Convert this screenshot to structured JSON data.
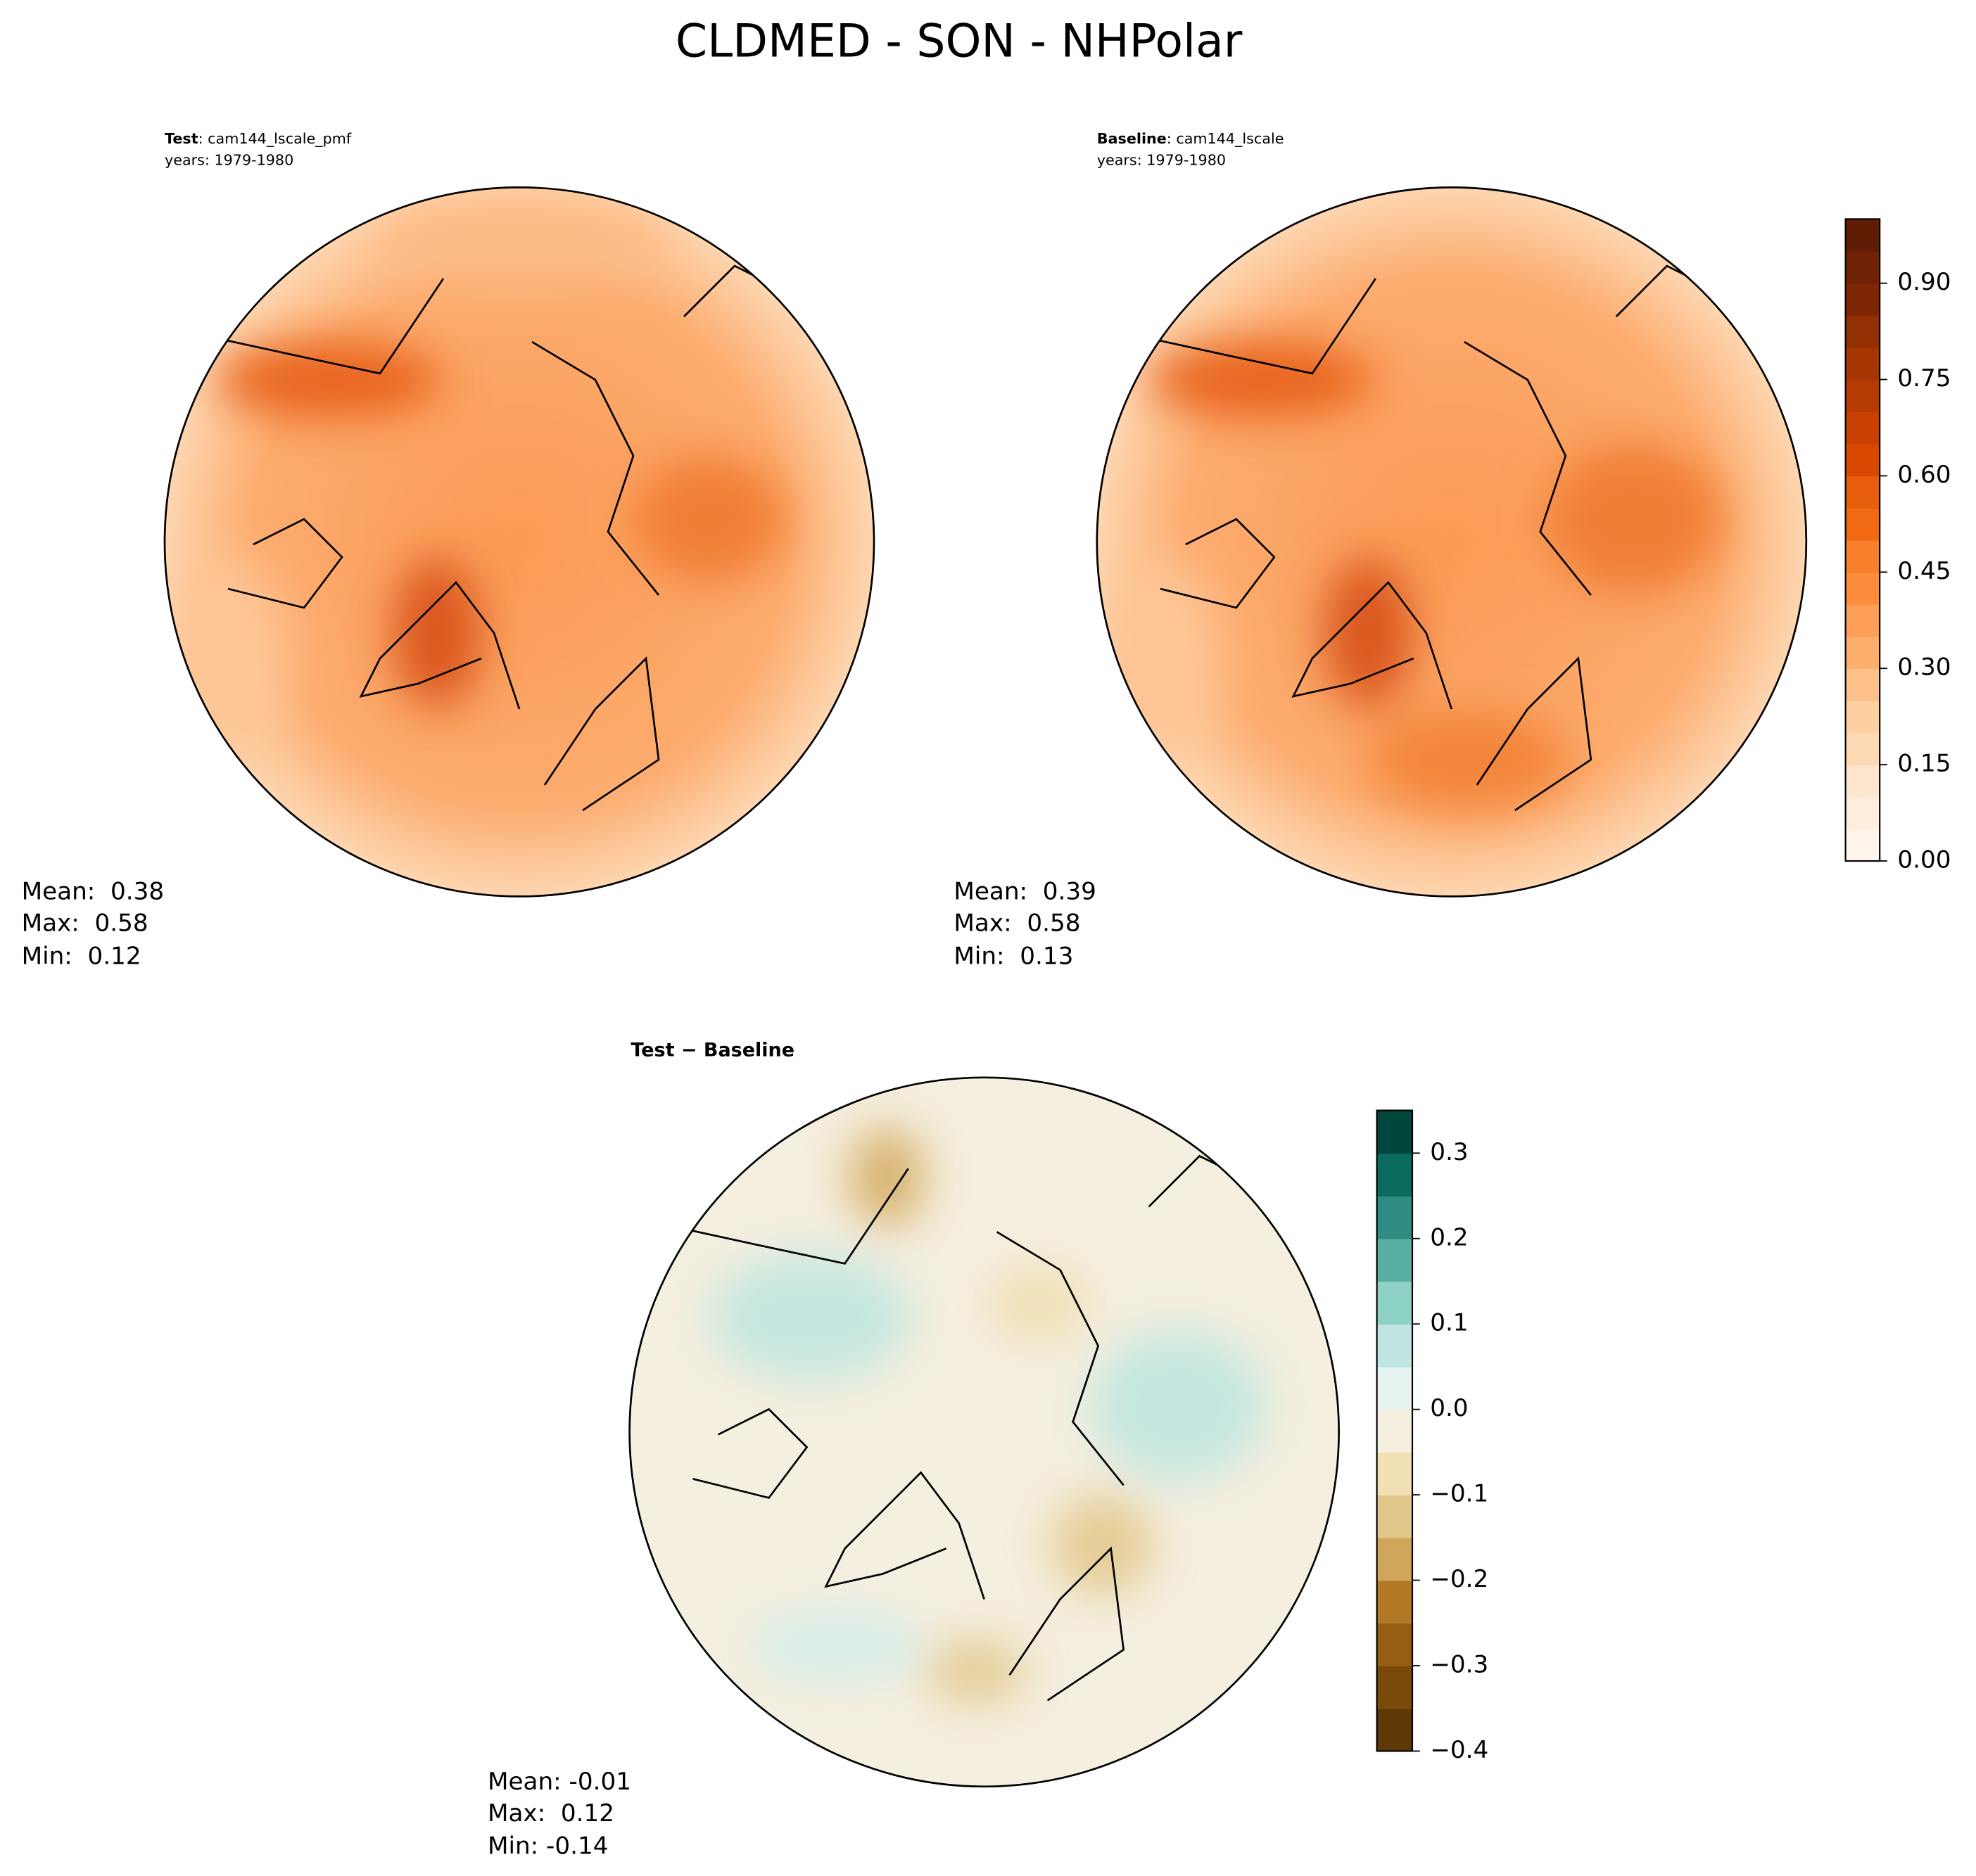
{
  "title": "CLDMED - SON - NHPolar",
  "chart_data": [
    {
      "type": "map",
      "title": "Test",
      "case": ": cam144_lscale_pmf",
      "years": "years: 1979-1980",
      "stats": [
        "Mean:  0.38",
        "Max:  0.58",
        "Min:  0.12"
      ]
    },
    {
      "type": "map",
      "title": "Baseline",
      "case": ": cam144_lscale",
      "years": "years: 1979-1980",
      "stats": [
        "Mean:  0.39",
        "Max:  0.58",
        "Min:  0.13"
      ],
      "colorbar": {
        "ylim": [
          0,
          1.0
        ],
        "yticks": [
          {
            "value": 0,
            "label": "0.00"
          },
          {
            "value": 0.15,
            "label": "0.15"
          },
          {
            "value": 0.3,
            "label": "0.30"
          },
          {
            "value": 0.45,
            "label": "0.45"
          },
          {
            "value": 0.6,
            "label": "0.60"
          },
          {
            "value": 0.75,
            "label": "0.75"
          },
          {
            "value": 0.9,
            "label": "0.90"
          }
        ],
        "colors": [
          "#fff5eb",
          "#feeddc",
          "#fee6ce",
          "#fdd9b4",
          "#fdd0a2",
          "#fdc08a",
          "#fdae6b",
          "#fd9f56",
          "#fd8d3c",
          "#f87f2c",
          "#f16913",
          "#e95e0d",
          "#d94801",
          "#c84102",
          "#b63b02",
          "#a63603",
          "#933003",
          "#7f2704",
          "#6f2204",
          "#5f1d04"
        ]
      }
    },
    {
      "type": "map",
      "title": "Test − Baseline",
      "stats": [
        "Mean: -0.01",
        "Max:  0.12",
        "Min: -0.14"
      ],
      "colorbar": {
        "ylim": [
          -0.4,
          0.35
        ],
        "yticks": [
          {
            "value": -0.4,
            "label": "−0.4"
          },
          {
            "value": -0.3,
            "label": "−0.3"
          },
          {
            "value": -0.2,
            "label": "−0.2"
          },
          {
            "value": -0.1,
            "label": "−0.1"
          },
          {
            "value": 0.0,
            "label": "0.0"
          },
          0.1,
          0.2,
          0.3
        ],
        "colors": [
          "#5e3806",
          "#7a4a0b",
          "#955e13",
          "#b27a26",
          "#d0a75a",
          "#e2c78a",
          "#f0e0b4",
          "#f5efdf",
          "#e6f3f1",
          "#bfe6e0",
          "#8ed2c6",
          "#5aafa3",
          "#2e8c82",
          "#0a6b5f",
          "#01463c"
        ]
      }
    }
  ]
}
